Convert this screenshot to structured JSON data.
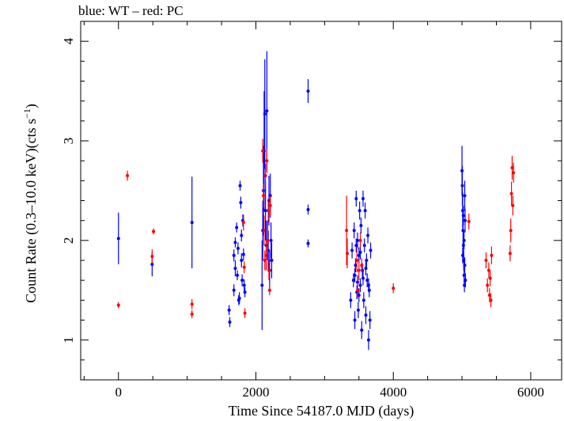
{
  "title": "blue: WT – red: PC",
  "chart_data": {
    "type": "scatter",
    "title": "blue: WT – red: PC",
    "xlabel": "Time Since 54187.0 MJD (days)",
    "ylabel": "Count Rate (0.3–10.0 keV)(cts s",
    "ylabel_sup": "−1",
    "ylabel_end": ")",
    "xlim": [
      -550,
      6450
    ],
    "ylim": [
      0.6,
      4.2
    ],
    "x_ticks": [
      0,
      2000,
      4000,
      6000
    ],
    "y_ticks": [
      1,
      2,
      3,
      4
    ],
    "grid": false,
    "series": [
      {
        "name": "WT",
        "color": "#0000ff",
        "points": [
          [
            0,
            2.02,
            0.26
          ],
          [
            490,
            1.76,
            0.12
          ],
          [
            1070,
            2.18,
            0.46
          ],
          [
            1610,
            1.3,
            0.05
          ],
          [
            1620,
            1.18,
            0.05
          ],
          [
            1680,
            1.5,
            0.06
          ],
          [
            1700,
            1.72,
            0.08
          ],
          [
            1720,
            2.13,
            0.05
          ],
          [
            1740,
            1.92,
            0.06
          ],
          [
            1760,
            1.42,
            0.06
          ],
          [
            1770,
            2.55,
            0.05
          ],
          [
            1780,
            2.38,
            0.06
          ],
          [
            1790,
            1.8,
            0.07
          ],
          [
            1800,
            1.6,
            0.06
          ],
          [
            1810,
            2.2,
            0.06
          ],
          [
            1820,
            1.86,
            0.06
          ],
          [
            1830,
            1.55,
            0.06
          ],
          [
            1840,
            1.48,
            0.05
          ],
          [
            1680,
            1.85,
            0.06
          ],
          [
            1700,
            1.98,
            0.05
          ],
          [
            1730,
            1.65,
            0.05
          ],
          [
            1750,
            1.4,
            0.05
          ],
          [
            1790,
            2.05,
            0.06
          ],
          [
            2090,
            1.55,
            0.45
          ],
          [
            2100,
            2.1,
            0.3
          ],
          [
            2110,
            2.5,
            0.45
          ],
          [
            2120,
            2.9,
            0.6
          ],
          [
            2130,
            3.27,
            0.55
          ],
          [
            2140,
            2.3,
            0.3
          ],
          [
            2150,
            1.95,
            0.25
          ],
          [
            2160,
            3.3,
            0.6
          ],
          [
            2170,
            2.0,
            0.2
          ],
          [
            2180,
            1.9,
            0.2
          ],
          [
            2190,
            2.4,
            0.25
          ],
          [
            2200,
            1.7,
            0.2
          ],
          [
            2210,
            2.45,
            0.22
          ],
          [
            2220,
            2.0,
            0.18
          ],
          [
            2230,
            1.8,
            0.18
          ],
          [
            2760,
            3.5,
            0.12
          ],
          [
            2760,
            2.31,
            0.05
          ],
          [
            2760,
            1.97,
            0.04
          ],
          [
            3380,
            1.4,
            0.08
          ],
          [
            3400,
            1.9,
            0.08
          ],
          [
            3420,
            1.6,
            0.07
          ],
          [
            3430,
            2.1,
            0.08
          ],
          [
            3440,
            1.2,
            0.09
          ],
          [
            3450,
            1.75,
            0.07
          ],
          [
            3460,
            2.42,
            0.08
          ],
          [
            3470,
            1.48,
            0.07
          ],
          [
            3480,
            2.0,
            0.08
          ],
          [
            3490,
            1.3,
            0.08
          ],
          [
            3500,
            1.85,
            0.08
          ],
          [
            3510,
            2.3,
            0.09
          ],
          [
            3520,
            1.55,
            0.07
          ],
          [
            3530,
            2.15,
            0.08
          ],
          [
            3540,
            1.1,
            0.09
          ],
          [
            3550,
            1.7,
            0.07
          ],
          [
            3560,
            2.42,
            0.08
          ],
          [
            3570,
            1.4,
            0.08
          ],
          [
            3580,
            1.95,
            0.07
          ],
          [
            3590,
            2.3,
            0.08
          ],
          [
            3600,
            1.25,
            0.09
          ],
          [
            3610,
            1.8,
            0.07
          ],
          [
            3620,
            1.6,
            0.07
          ],
          [
            3630,
            2.05,
            0.08
          ],
          [
            3640,
            1.0,
            0.1
          ],
          [
            3650,
            1.5,
            0.07
          ],
          [
            3660,
            1.2,
            0.09
          ],
          [
            3670,
            1.9,
            0.08
          ],
          [
            3440,
            1.65,
            0.07
          ],
          [
            3480,
            1.58,
            0.07
          ],
          [
            3520,
            1.88,
            0.07
          ],
          [
            3560,
            1.62,
            0.07
          ],
          [
            3600,
            1.72,
            0.07
          ],
          [
            3640,
            1.55,
            0.07
          ],
          [
            3460,
            1.95,
            0.07
          ],
          [
            3500,
            1.45,
            0.07
          ],
          [
            5000,
            2.7,
            0.25
          ],
          [
            5005,
            2.55,
            0.2
          ],
          [
            5010,
            2.3,
            0.18
          ],
          [
            5015,
            2.1,
            0.15
          ],
          [
            5020,
            1.95,
            0.12
          ],
          [
            5025,
            1.8,
            0.1
          ],
          [
            5030,
            1.65,
            0.08
          ],
          [
            5035,
            1.55,
            0.07
          ],
          [
            5040,
            2.45,
            0.15
          ],
          [
            5045,
            2.2,
            0.12
          ],
          [
            5050,
            1.6,
            0.07
          ],
          [
            5010,
            1.85,
            0.08
          ],
          [
            5020,
            2.25,
            0.1
          ],
          [
            5030,
            2.0,
            0.09
          ],
          [
            5040,
            1.75,
            0.08
          ]
        ]
      },
      {
        "name": "PC",
        "color": "#ff0000",
        "points": [
          [
            0,
            1.35,
            0.03
          ],
          [
            130,
            2.65,
            0.05
          ],
          [
            490,
            1.84,
            0.07
          ],
          [
            510,
            2.09,
            0.03
          ],
          [
            1070,
            1.36,
            0.05
          ],
          [
            1070,
            1.26,
            0.04
          ],
          [
            1820,
            2.18,
            0.08
          ],
          [
            1830,
            1.73,
            0.06
          ],
          [
            1840,
            1.27,
            0.05
          ],
          [
            2100,
            2.9,
            0.12
          ],
          [
            2120,
            2.1,
            0.15
          ],
          [
            2140,
            2.65,
            0.12
          ],
          [
            2150,
            1.85,
            0.15
          ],
          [
            2160,
            2.8,
            0.12
          ],
          [
            2170,
            2.0,
            0.12
          ],
          [
            2180,
            2.3,
            0.12
          ],
          [
            2190,
            1.7,
            0.1
          ],
          [
            2200,
            1.5,
            0.05
          ],
          [
            2210,
            2.35,
            0.1
          ],
          [
            2130,
            1.8,
            0.1
          ],
          [
            2110,
            2.45,
            0.12
          ],
          [
            3320,
            2.1,
            0.35
          ],
          [
            3330,
            1.87,
            0.15
          ],
          [
            3470,
            1.8,
            0.12
          ],
          [
            3480,
            1.5,
            0.08
          ],
          [
            3500,
            1.7,
            0.1
          ],
          [
            3520,
            2.0,
            0.08
          ],
          [
            3540,
            1.75,
            0.07
          ],
          [
            4000,
            1.52,
            0.05
          ],
          [
            5100,
            2.19,
            0.08
          ],
          [
            5350,
            1.8,
            0.08
          ],
          [
            5370,
            1.55,
            0.07
          ],
          [
            5390,
            1.7,
            0.08
          ],
          [
            5400,
            1.45,
            0.07
          ],
          [
            5410,
            1.62,
            0.08
          ],
          [
            5420,
            1.4,
            0.07
          ],
          [
            5430,
            1.85,
            0.09
          ],
          [
            5700,
            1.87,
            0.08
          ],
          [
            5710,
            2.1,
            0.12
          ],
          [
            5720,
            2.47,
            0.12
          ],
          [
            5730,
            2.73,
            0.12
          ],
          [
            5740,
            2.35,
            0.1
          ],
          [
            5750,
            2.68,
            0.1
          ]
        ]
      }
    ]
  }
}
